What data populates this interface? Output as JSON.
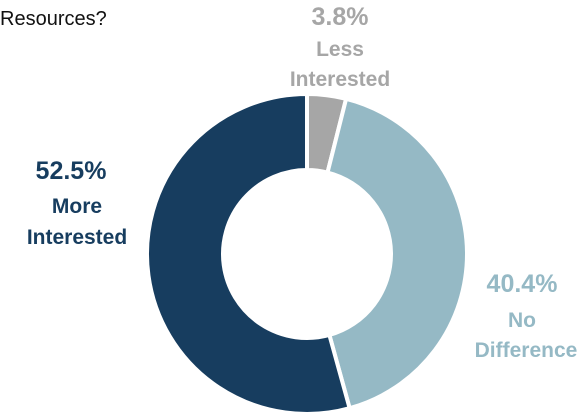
{
  "title": "Resources?",
  "title_partial_right": "",
  "chart_data": {
    "type": "pie",
    "title": "Resources?",
    "donut": true,
    "slices": [
      {
        "name": "Less Interested",
        "label_lines": [
          "Less",
          "Interested"
        ],
        "value": 3.8,
        "value_label": "3.8%",
        "color": "#a6a6a6"
      },
      {
        "name": "No Difference",
        "label_lines": [
          "No",
          "Difference"
        ],
        "value": 40.4,
        "value_label": "40.4%",
        "color": "#95b9c5"
      },
      {
        "name": "More Interested",
        "label_lines": [
          "More",
          "Interested"
        ],
        "value": 52.5,
        "value_label": "52.5%",
        "color": "#173d5f"
      }
    ],
    "start_angle_deg": 0,
    "direction": "clockwise"
  }
}
